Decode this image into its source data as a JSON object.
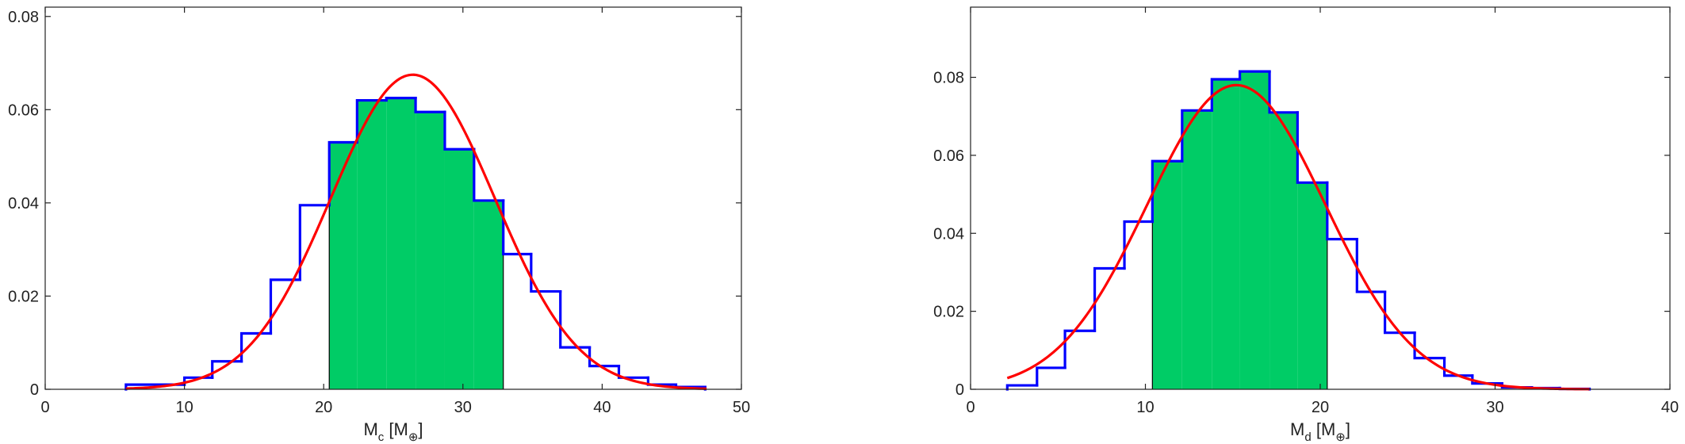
{
  "colors": {
    "histogram": "#0000ff",
    "fill": "#00cc66",
    "curve": "#ff0000",
    "axis": "#222222",
    "background": "#ffffff"
  },
  "chart_data": [
    {
      "type": "bar",
      "subtype": "step-histogram with fitted normal curve",
      "title": "",
      "xlabel": {
        "base": "M",
        "sub": "c",
        "unit_base": "M",
        "unit_sub": "⊕"
      },
      "ylabel": "",
      "xlim": [
        0,
        50
      ],
      "ylim": [
        0,
        0.082
      ],
      "xticks": [
        0,
        10,
        20,
        30,
        40,
        50
      ],
      "xtick_labels": [
        "0",
        "10",
        "20",
        "30",
        "40",
        "50"
      ],
      "yticks": [
        0,
        0.02,
        0.04,
        0.06,
        0.08
      ],
      "ytick_labels": [
        "0",
        "0.02",
        "0.04",
        "0.06",
        "0.08"
      ],
      "bin_edges": [
        5.8,
        7.9,
        10.0,
        12.0,
        14.1,
        16.2,
        18.3,
        20.4,
        22.4,
        24.5,
        26.6,
        28.7,
        30.8,
        32.9,
        34.9,
        37.0,
        39.1,
        41.2,
        43.3,
        45.3,
        47.4
      ],
      "bin_values": [
        0.001,
        0.001,
        0.0025,
        0.006,
        0.012,
        0.0235,
        0.0395,
        0.053,
        0.062,
        0.0625,
        0.0595,
        0.0515,
        0.0405,
        0.029,
        0.021,
        0.009,
        0.005,
        0.0025,
        0.001,
        0.0005
      ],
      "shaded_range": [
        20.4,
        32.9
      ],
      "fit": {
        "type": "normal",
        "peak_x": 26.4,
        "peak_y": 0.0675,
        "sigma": 5.9,
        "x_range": [
          5.8,
          47.5
        ]
      },
      "grid": false,
      "legend": false
    },
    {
      "type": "bar",
      "subtype": "step-histogram with fitted normal curve",
      "title": "",
      "xlabel": {
        "base": "M",
        "sub": "d",
        "unit_base": "M",
        "unit_sub": "⊕"
      },
      "ylabel": "",
      "xlim": [
        0,
        40
      ],
      "ylim": [
        0,
        0.098
      ],
      "xticks": [
        0,
        10,
        20,
        30,
        40
      ],
      "xtick_labels": [
        "0",
        "10",
        "20",
        "30",
        "40"
      ],
      "yticks": [
        0,
        0.02,
        0.04,
        0.06,
        0.08
      ],
      "ytick_labels": [
        "0",
        "0.02",
        "0.04",
        "0.06",
        "0.08"
      ],
      "bin_edges": [
        2.1,
        3.8,
        5.4,
        7.1,
        8.8,
        10.4,
        12.1,
        13.8,
        15.4,
        17.1,
        18.7,
        20.4,
        22.1,
        23.7,
        25.4,
        27.1,
        28.7,
        30.4,
        32.1,
        33.7,
        35.4
      ],
      "bin_values": [
        0.001,
        0.0055,
        0.015,
        0.031,
        0.043,
        0.0585,
        0.0715,
        0.0795,
        0.0815,
        0.071,
        0.053,
        0.0385,
        0.025,
        0.0145,
        0.008,
        0.0035,
        0.0015,
        0.0005,
        0.0003,
        0.0001
      ],
      "shaded_range": [
        10.4,
        20.4
      ],
      "fit": {
        "type": "normal",
        "peak_x": 15.2,
        "peak_y": 0.078,
        "sigma": 5.1,
        "x_range": [
          2.1,
          35.4
        ]
      },
      "grid": false,
      "legend": false
    }
  ]
}
